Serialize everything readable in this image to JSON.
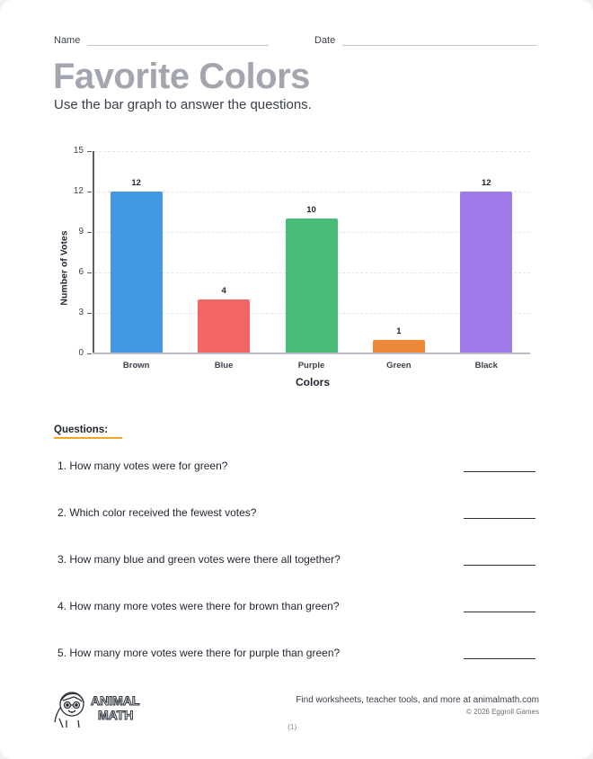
{
  "header": {
    "name_label": "Name",
    "date_label": "Date",
    "title": "Favorite Colors",
    "subtitle": "Use the bar graph to answer the questions."
  },
  "chart_data": {
    "type": "bar",
    "title": "",
    "xlabel": "Colors",
    "ylabel": "Number of Votes",
    "categories": [
      "Brown",
      "Blue",
      "Purple",
      "Green",
      "Black"
    ],
    "values": [
      12,
      4,
      10,
      1,
      12
    ],
    "bar_colors": [
      "#4299e1",
      "#f56565",
      "#48bb78",
      "#ed8936",
      "#9f7aea"
    ],
    "ylim": [
      0,
      15
    ],
    "yticks": [
      0,
      3,
      6,
      9,
      12,
      15
    ],
    "grid": true,
    "data_labels": true,
    "legend": null
  },
  "questions": {
    "header": "Questions:",
    "items": [
      {
        "text": "1. How many votes were for green?"
      },
      {
        "text": "2. Which color received the fewest votes?"
      },
      {
        "text": "3. How many blue and green votes were there all together?"
      },
      {
        "text": "4. How many more votes were there for brown than green?"
      },
      {
        "text": "5. How many more votes were there for purple than green?"
      }
    ]
  },
  "footer": {
    "logo_text_line1": "ANIMAL",
    "logo_text_line2": "MATH",
    "tagline": "Find worksheets, teacher tools, and more at animalmath.com",
    "copyright": "© 2026 Eggroll Games",
    "page_number": "(1)"
  },
  "colors": {
    "title": "#a3a6b0",
    "accent_underline": "#f5a623"
  }
}
